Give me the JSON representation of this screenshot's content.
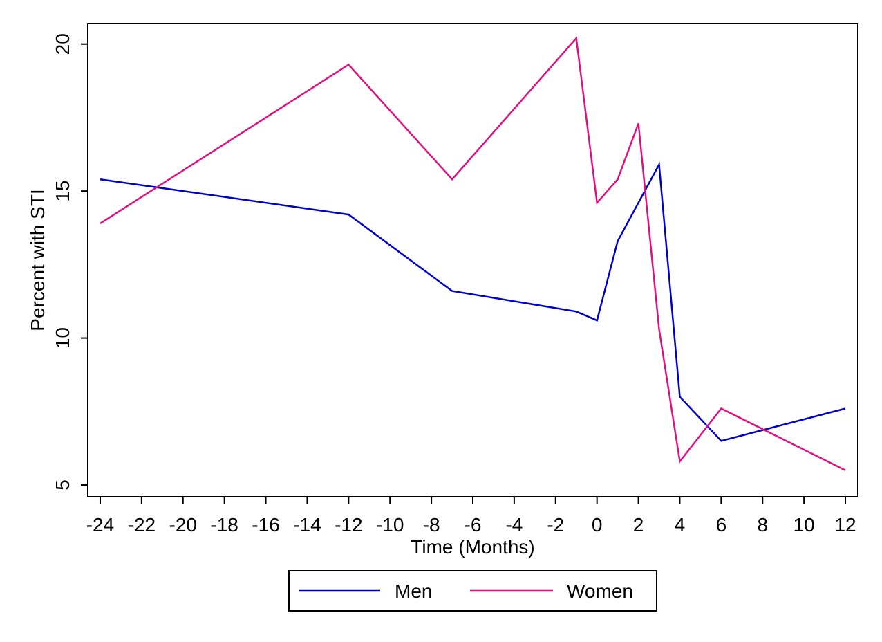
{
  "chart_data": {
    "type": "line",
    "xlabel": "Time (Months)",
    "ylabel": "Percent with STI",
    "xlim": [
      -24.6,
      12.6
    ],
    "ylim": [
      4.6,
      20.7
    ],
    "xticks": [
      -24,
      -22,
      -20,
      -18,
      -16,
      -14,
      -12,
      -10,
      -8,
      -6,
      -4,
      -2,
      0,
      2,
      4,
      6,
      8,
      10,
      12
    ],
    "xtick_labels": [
      "-24",
      "-22",
      "-20",
      "-18",
      "-16",
      "-14",
      "-12",
      "-10",
      "-8",
      "-6",
      "-4",
      "-2",
      "0",
      "2",
      "4",
      "6",
      "8",
      "10",
      "12"
    ],
    "yticks": [
      5,
      10,
      15,
      20
    ],
    "ytick_labels": [
      "5",
      "10",
      "15",
      "20"
    ],
    "grid": false,
    "legend_position": "bottom",
    "series": [
      {
        "name": "Men",
        "color": "#0000cc",
        "x": [
          -24,
          -12,
          -7,
          -1,
          0,
          1,
          3,
          4,
          6,
          12
        ],
        "y": [
          15.4,
          14.2,
          11.6,
          10.9,
          10.6,
          13.3,
          15.9,
          8.0,
          6.5,
          7.6
        ]
      },
      {
        "name": "Women",
        "color": "#e0107f",
        "x": [
          -24,
          -12,
          -7,
          -1,
          0,
          1,
          2,
          3,
          4,
          6,
          12
        ],
        "y": [
          13.9,
          19.3,
          15.4,
          20.2,
          14.6,
          15.4,
          17.3,
          10.3,
          5.8,
          7.6,
          5.5
        ]
      }
    ]
  }
}
